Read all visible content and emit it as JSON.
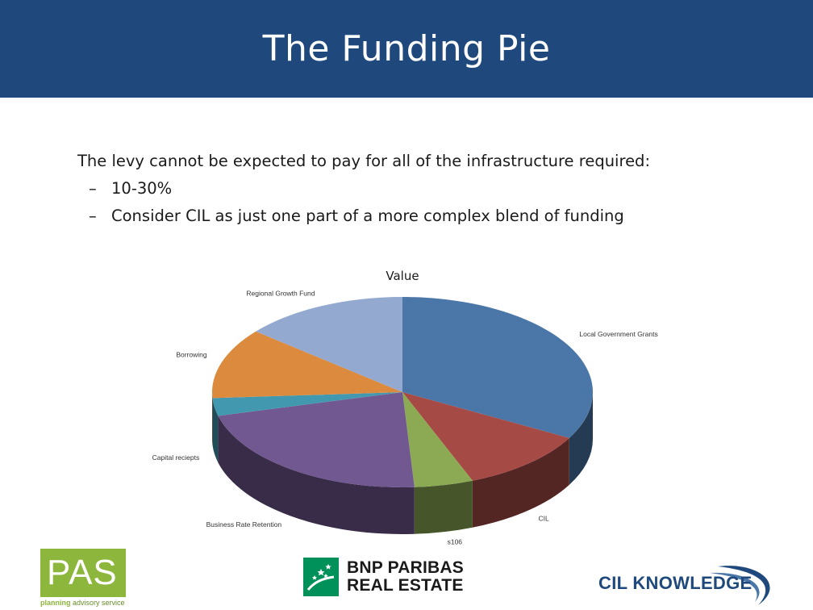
{
  "slide": {
    "title": "The Funding Pie",
    "intro": "The levy cannot be expected to pay for all of the infrastructure required:",
    "bullets": [
      {
        "dash": "–",
        "text": "10-30%"
      },
      {
        "dash": "–",
        "text": "Consider CIL as just one part of a more complex blend of funding"
      }
    ]
  },
  "chart_data": {
    "type": "pie",
    "title": "Value",
    "style": "3d",
    "start_angle_deg": 0,
    "direction": "clockwise",
    "slices": [
      {
        "label": "Local Government Grants",
        "value": 33,
        "color": "#4a76a8"
      },
      {
        "label": "CIL",
        "value": 11,
        "color": "#a64a45"
      },
      {
        "label": "s106",
        "value": 5,
        "color": "#8caa53"
      },
      {
        "label": "Business Rate Retention",
        "value": 22,
        "color": "#715890"
      },
      {
        "label": "Capital reciepts",
        "value": 3,
        "color": "#4299af"
      },
      {
        "label": "Borrowing",
        "value": 12,
        "color": "#db8a3e"
      },
      {
        "label": "Regional Growth Fund",
        "value": 14,
        "color": "#93a9cf"
      }
    ],
    "legend": "none"
  },
  "logos": {
    "pas_main": "PAS",
    "pas_sub_bold": "planning",
    "pas_sub_rest": " advisory service",
    "bnp_line1": "BNP PARIBAS",
    "bnp_line2": "REAL ESTATE",
    "cil": "CIL KNOWLEDGE"
  }
}
